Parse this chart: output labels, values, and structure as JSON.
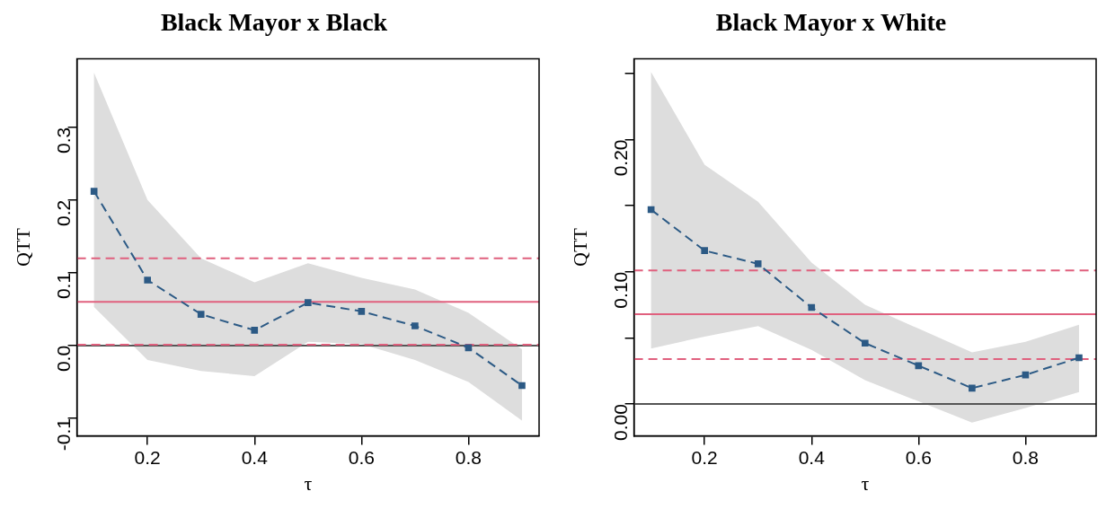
{
  "chart_data": [
    {
      "type": "line",
      "title": "Black Mayor x Black",
      "xlabel": "τ",
      "ylabel": "QTT",
      "x": [
        0.1,
        0.2,
        0.3,
        0.4,
        0.5,
        0.6,
        0.7,
        0.8,
        0.9
      ],
      "series": [
        {
          "color": "#2c5a85",
          "values": [
            0.212,
            0.09,
            0.043,
            0.021,
            0.059,
            0.047,
            0.027,
            -0.003,
            -0.055
          ],
          "lower": [
            0.053,
            -0.02,
            -0.035,
            -0.042,
            0.005,
            0.002,
            -0.02,
            -0.05,
            -0.103
          ],
          "upper": [
            0.375,
            0.2,
            0.12,
            0.087,
            0.113,
            0.093,
            0.077,
            0.045,
            -0.005
          ]
        }
      ],
      "xlim": [
        0.068,
        0.932
      ],
      "ylim": [
        -0.124,
        0.394
      ],
      "xticks": [
        0.2,
        0.4,
        0.6,
        0.8
      ],
      "yticks": [
        {
          "value": -0.1,
          "label": "-0.1"
        },
        {
          "value": 0,
          "label": "0.0"
        },
        0.1,
        0.2,
        0.3
      ],
      "ref_lines": [
        {
          "axis": "y",
          "value": 0,
          "color": "#555555",
          "line_style": "solid"
        },
        {
          "axis": "y",
          "value": 0.06,
          "color": "#e0607e",
          "line_style": "solid"
        },
        {
          "axis": "y",
          "value": 0.12,
          "color": "#e0607e",
          "line_style": "dashed"
        },
        {
          "axis": "y",
          "value": 0.001,
          "color": "#e0607e",
          "line_style": "dashed"
        }
      ],
      "marker": "square",
      "line_style": "dashed",
      "grid": false
    },
    {
      "type": "line",
      "title": "Black Mayor x White",
      "xlabel": "τ",
      "ylabel": "QTT",
      "x": [
        0.1,
        0.2,
        0.3,
        0.4,
        0.5,
        0.6,
        0.7,
        0.8,
        0.9
      ],
      "series": [
        {
          "color": "#2c5a85",
          "values": [
            0.147,
            0.116,
            0.106,
            0.073,
            0.046,
            0.029,
            0.012,
            0.022,
            0.035
          ],
          "lower": [
            0.042,
            0.051,
            0.059,
            0.041,
            0.018,
            0.002,
            -0.014,
            -0.003,
            0.009
          ],
          "upper": [
            0.251,
            0.181,
            0.153,
            0.107,
            0.075,
            0.057,
            0.039,
            0.047,
            0.06
          ]
        }
      ],
      "xlim": [
        0.068,
        0.932
      ],
      "ylim": [
        -0.024,
        0.261
      ],
      "xticks": [
        0.2,
        0.4,
        0.6,
        0.8
      ],
      "yticks": [
        {
          "value": 0,
          "label": "0.00"
        },
        {
          "value": 0.05,
          "label": null
        },
        {
          "value": 0.1,
          "label": "0.10"
        },
        {
          "value": 0.15,
          "label": null
        },
        {
          "value": 0.2,
          "label": "0.20"
        },
        {
          "value": 0.25,
          "label": null
        }
      ],
      "ref_lines": [
        {
          "axis": "y",
          "value": 0,
          "color": "#555555",
          "line_style": "solid"
        },
        {
          "axis": "y",
          "value": 0.068,
          "color": "#e0607e",
          "line_style": "solid"
        },
        {
          "axis": "y",
          "value": 0.101,
          "color": "#e0607e",
          "line_style": "dashed"
        },
        {
          "axis": "y",
          "value": 0.034,
          "color": "#e0607e",
          "line_style": "dashed"
        }
      ],
      "marker": "square",
      "line_style": "dashed",
      "grid": false
    }
  ]
}
